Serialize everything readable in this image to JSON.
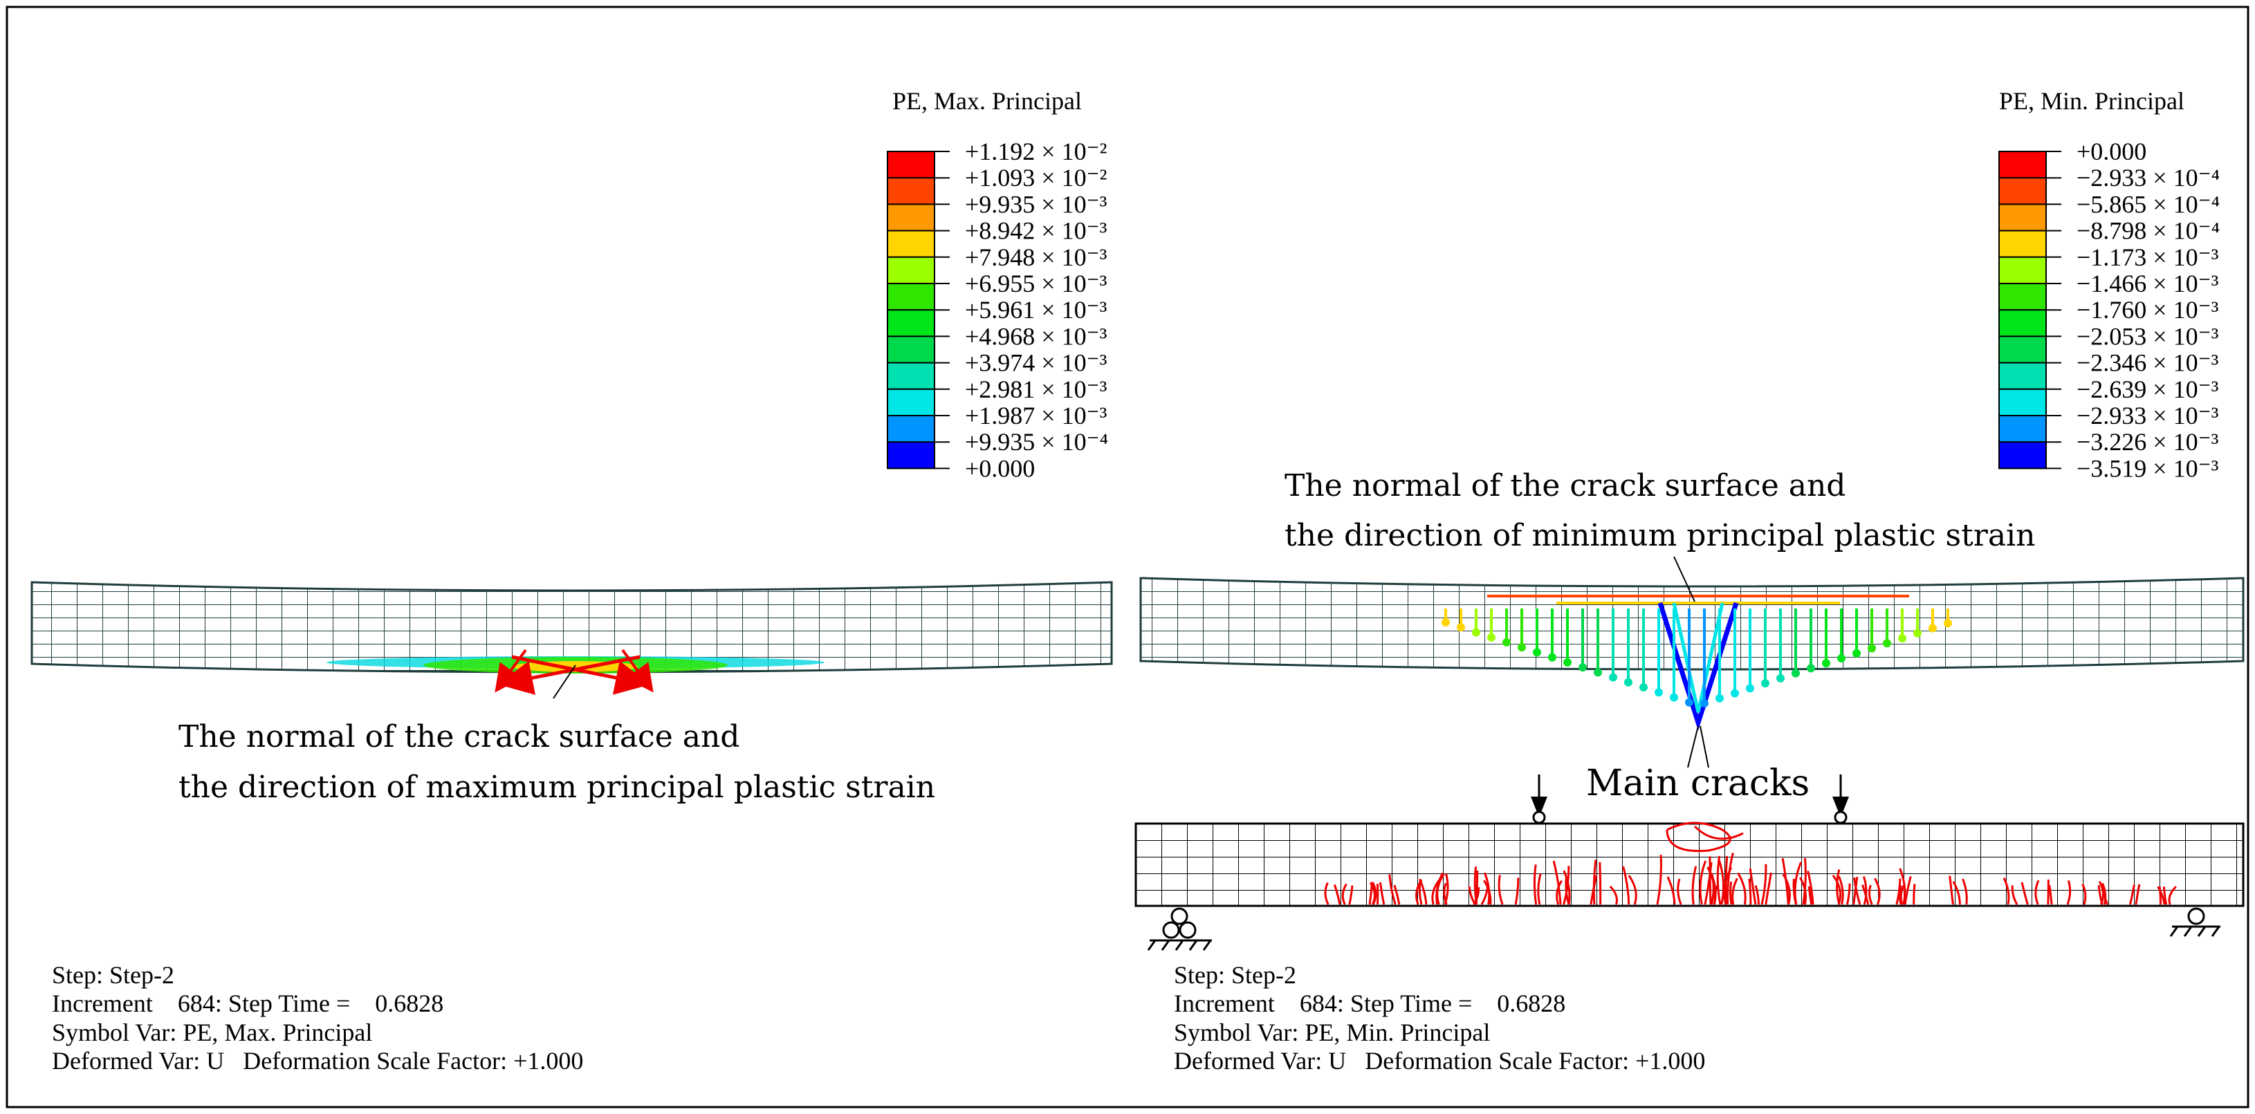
{
  "left_panel": {
    "legend": {
      "title": "PE, Max. Principal",
      "labels": [
        "+1.192 × 10⁻²",
        "+1.093 × 10⁻²",
        "+9.935 × 10⁻³",
        "+8.942 × 10⁻³",
        "+7.948 × 10⁻³",
        "+6.955 × 10⁻³",
        "+5.961 × 10⁻³",
        "+4.968 × 10⁻³",
        "+3.974 × 10⁻³",
        "+2.981 × 10⁻³",
        "+1.987 × 10⁻³",
        "+9.935 × 10⁻⁴",
        "+0.000"
      ],
      "colors": [
        "#ff0000",
        "#ff4500",
        "#ff9900",
        "#ffd400",
        "#9cff00",
        "#2ee600",
        "#00e619",
        "#00d94c",
        "#00e0b0",
        "#00e5e5",
        "#0094ff",
        "#0000ff"
      ]
    },
    "annotation": [
      "The normal of the crack surface and",
      "the direction of maximum principal plastic strain"
    ],
    "info": [
      "Step: Step-2",
      "Increment    684: Step Time =    0.6828",
      "Symbol Var: PE, Max. Principal",
      "Deformed Var: U   Deformation Scale Factor: +1.000"
    ]
  },
  "right_panel": {
    "legend": {
      "title": "PE, Min. Principal",
      "labels": [
        "+0.000",
        "−2.933 × 10⁻⁴",
        "−5.865 × 10⁻⁴",
        "−8.798 × 10⁻⁴",
        "−1.173 × 10⁻³",
        "−1.466 × 10⁻³",
        "−1.760 × 10⁻³",
        "−2.053 × 10⁻³",
        "−2.346 × 10⁻³",
        "−2.639 × 10⁻³",
        "−2.933 × 10⁻³",
        "−3.226 × 10⁻³",
        "−3.519 × 10⁻³"
      ],
      "colors": [
        "#ff0000",
        "#ff4500",
        "#ff9900",
        "#ffd400",
        "#9cff00",
        "#2ee600",
        "#00e619",
        "#00d94c",
        "#00e0b0",
        "#00e5e5",
        "#0094ff",
        "#0000ff"
      ]
    },
    "annotation": [
      "The normal of the crack surface and",
      "the direction of minimum principal plastic strain"
    ],
    "crack_label": "Main cracks",
    "info": [
      "Step: Step-2",
      "Increment    684: Step Time =    0.6828",
      "Symbol Var: PE, Min. Principal",
      "Deformed Var: U   Deformation Scale Factor: +1.000"
    ]
  }
}
